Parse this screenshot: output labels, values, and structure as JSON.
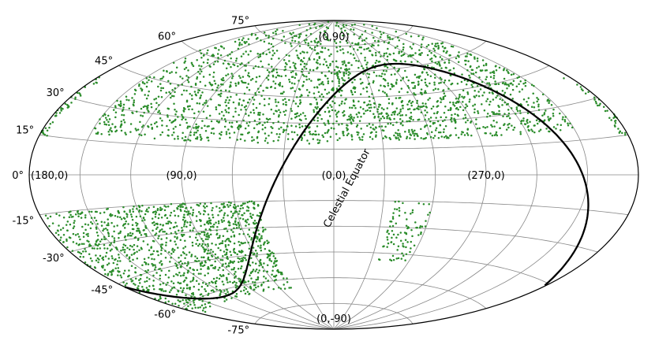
{
  "chart_data": {
    "type": "scatter",
    "projection": "aitoff",
    "coordinate_system": "galactic",
    "grid": true,
    "colors": {
      "points": "#2a8c2a",
      "equator": "#000000",
      "grid": "#888888",
      "frame": "#000000"
    },
    "lat_tick_labels": [
      "75°",
      "60°",
      "45°",
      "30°",
      "15°",
      "0°",
      "-15°",
      "-30°",
      "-45°",
      "-60°",
      "-75°"
    ],
    "lat_tick_values": [
      75,
      60,
      45,
      30,
      15,
      0,
      -15,
      -30,
      -45,
      -60,
      -75
    ],
    "annotations": [
      {
        "text": "(0,90)",
        "l": 0,
        "b": 90
      },
      {
        "text": "(180,0)",
        "l": 180,
        "b": 0
      },
      {
        "text": "(90,0)",
        "l": 90,
        "b": 0
      },
      {
        "text": "(0,0)",
        "l": 0,
        "b": 0
      },
      {
        "text": "(270,0)",
        "l": 270,
        "b": 0
      },
      {
        "text": "(0,-90)",
        "l": 0,
        "b": -90
      }
    ],
    "equator_label": "Celestial Equator",
    "point_clusters": [
      {
        "name": "north-galactic-cap",
        "l_range": [
          210,
          360
        ],
        "b_range": [
          20,
          90
        ],
        "count": 1100
      },
      {
        "name": "north-cap-east",
        "l_range": [
          0,
          150
        ],
        "b_range": [
          18,
          90
        ],
        "count": 1000
      },
      {
        "name": "north-cap-western-rim",
        "l_range": [
          175,
          185
        ],
        "b_range": [
          15,
          40
        ],
        "count": 80
      },
      {
        "name": "south-galactic-region",
        "l_range": [
          45,
          180
        ],
        "b_range": [
          -65,
          -15
        ],
        "count": 1300
      },
      {
        "name": "south-western-rim",
        "l_range": [
          300,
          325
        ],
        "b_range": [
          -50,
          -15
        ],
        "count": 90
      }
    ]
  }
}
